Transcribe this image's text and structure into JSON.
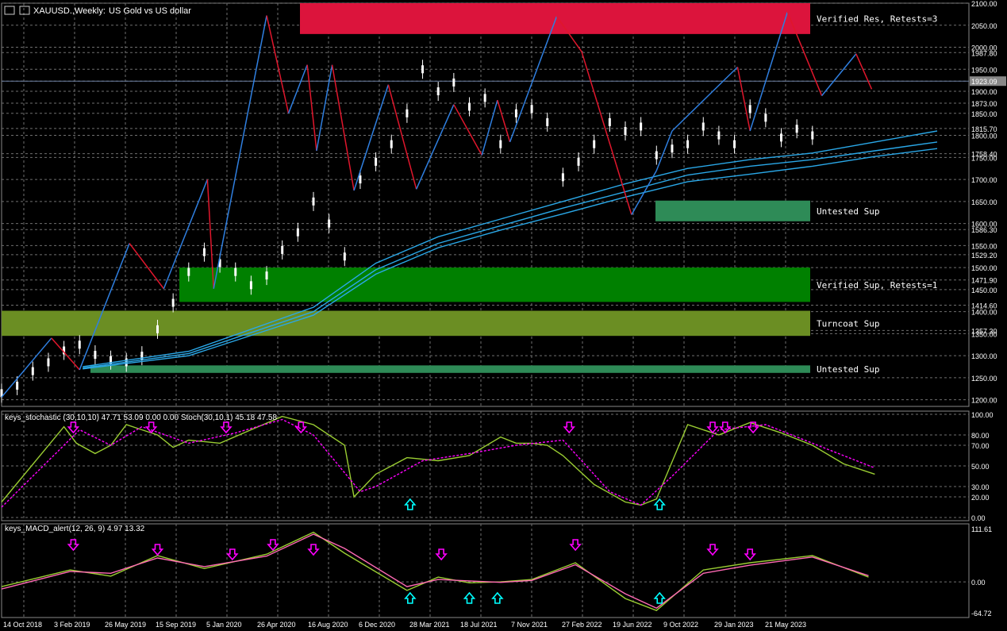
{
  "header": {
    "symbol": "XAUUSD.,Weekly:",
    "description": "US Gold vs US dollar"
  },
  "colors": {
    "background": "#000000",
    "grid": "#6f6f6f",
    "price_axis_bg": "#000000",
    "up_candle": "#ffffff",
    "zigzag_up": "#2f7fe0",
    "zigzag_down": "#e0162c",
    "moving_average": "#2aa8e8",
    "zone_resistance": "#dc143c",
    "zone_verified_sup": "#008000",
    "zone_turncoat": "#6b8e23",
    "zone_untested": "#2e8b57",
    "stoch_main": "#9acd32",
    "stoch_signal": "#ff00ff",
    "stoch_raw": "#9a9a9a",
    "macd_main": "#9acd32",
    "macd_signal": "#ff69b4",
    "arrow_down": "#ff00ff",
    "arrow_up": "#00ffff"
  },
  "price_panel": {
    "y_ticks": [
      "2100.00",
      "2050.00",
      "2000.00",
      "1987.80",
      "1950.00",
      "1923.09",
      "1900.00",
      "1873.00",
      "1850.00",
      "1815.70",
      "1800.00",
      "1758.40",
      "1750.00",
      "1700.00",
      "1650.00",
      "1600.00",
      "1586.30",
      "1550.00",
      "1529.20",
      "1500.00",
      "1471.90",
      "1450.00",
      "1414.60",
      "1400.00",
      "1357.30",
      "1350.00",
      "1300.00",
      "1250.00",
      "1200.00"
    ],
    "current_price": "1923.09",
    "ylim": [
      1185,
      2100
    ],
    "zones": [
      {
        "kind": "resistance",
        "low": 2030,
        "high": 2100,
        "label": "Verified Res, Retests=3"
      },
      {
        "kind": "untested",
        "low": 1605,
        "high": 1652,
        "label": "Untested Sup"
      },
      {
        "kind": "verified",
        "low": 1422,
        "high": 1500,
        "label": "Verified Sup, Retests=1"
      },
      {
        "kind": "turncoat",
        "low": 1345,
        "high": 1402,
        "label": "Turncoat Sup"
      },
      {
        "kind": "untested",
        "low": 1261,
        "high": 1278,
        "label": "Untested Sup"
      }
    ]
  },
  "stoch_panel": {
    "title": "keys_stochastic (30,10,10) 47.71 53.09 0.00 0.00 Stoch(30,10,1) 45.18 47.58",
    "y_ticks": [
      "100.00",
      "80.00",
      "70.00",
      "50.00",
      "30.00",
      "20.00",
      "0.00"
    ],
    "ylim": [
      0,
      100
    ]
  },
  "macd_panel": {
    "title": "keys_MACD_alert(12, 26, 9) 4.97 13.32",
    "y_ticks": [
      "111.61",
      "0.00",
      "-64.72"
    ],
    "ylim": [
      -64.72,
      111.61
    ]
  },
  "x_axis": {
    "labels": [
      "14 Oct 2018",
      "3 Feb 2019",
      "26 May 2019",
      "15 Sep 2019",
      "5 Jan 2020",
      "26 Apr 2020",
      "16 Aug 2020",
      "6 Dec 2020",
      "28 Mar 2021",
      "18 Jul 2021",
      "7 Nov 2021",
      "27 Feb 2022",
      "19 Jun 2022",
      "9 Oct 2022",
      "29 Jan 2023",
      "21 May 2023"
    ]
  },
  "chart_data": [
    {
      "type": "line",
      "panel": "price",
      "ylim": [
        1185,
        2100
      ],
      "series": [
        {
          "role": "close",
          "x": [
            0,
            5,
            10,
            15,
            20,
            25,
            30,
            35,
            40,
            45,
            50,
            55,
            60,
            65,
            70,
            75,
            80,
            85,
            90,
            95,
            100,
            105,
            110,
            115,
            120,
            125,
            130,
            135,
            140,
            145,
            150,
            155,
            160,
            165,
            170,
            175,
            180,
            185,
            190,
            195,
            200,
            205,
            210,
            215,
            220,
            225,
            230,
            235,
            240,
            245,
            250,
            255,
            260
          ],
          "values": [
            1215,
            1232,
            1265,
            1285,
            1312,
            1325,
            1302,
            1290,
            1285,
            1300,
            1360,
            1420,
            1490,
            1535,
            1510,
            1490,
            1460,
            1482,
            1540,
            1580,
            1650,
            1600,
            1525,
            1700,
            1740,
            1780,
            1850,
            1950,
            1900,
            1920,
            1865,
            1885,
            1780,
            1850,
            1860,
            1830,
            1705,
            1740,
            1780,
            1830,
            1810,
            1820,
            1755,
            1770,
            1780,
            1820,
            1800,
            1780,
            1860,
            1840,
            1795,
            1815,
            1800
          ]
        },
        {
          "role": "ma1",
          "x": [
            26,
            60,
            100,
            120,
            140,
            160,
            180,
            200,
            220,
            240,
            260,
            280,
            300
          ],
          "values": [
            1275,
            1310,
            1410,
            1510,
            1570,
            1610,
            1650,
            1690,
            1725,
            1745,
            1760,
            1785,
            1810
          ]
        },
        {
          "role": "ma2",
          "x": [
            26,
            60,
            100,
            120,
            140,
            160,
            180,
            200,
            220,
            240,
            260,
            280,
            300
          ],
          "values": [
            1272,
            1305,
            1400,
            1495,
            1555,
            1595,
            1635,
            1672,
            1710,
            1730,
            1745,
            1765,
            1785
          ]
        },
        {
          "role": "ma3",
          "x": [
            26,
            60,
            100,
            120,
            140,
            160,
            180,
            200,
            220,
            240,
            260,
            280,
            300
          ],
          "values": [
            1270,
            1300,
            1392,
            1485,
            1545,
            1585,
            1622,
            1660,
            1695,
            1712,
            1730,
            1752,
            1770
          ]
        }
      ],
      "zigzag": [
        [
          0,
          1206
        ],
        [
          16,
          1340
        ],
        [
          25,
          1268
        ],
        [
          41,
          1555
        ],
        [
          52,
          1452
        ],
        [
          66,
          1700
        ],
        [
          68,
          1452
        ],
        [
          85,
          2072
        ],
        [
          92,
          1850
        ],
        [
          98,
          1960
        ],
        [
          101,
          1765
        ],
        [
          106,
          1960
        ],
        [
          113,
          1675
        ],
        [
          124,
          1915
        ],
        [
          133,
          1678
        ],
        [
          145,
          1870
        ],
        [
          154,
          1755
        ],
        [
          159,
          1880
        ],
        [
          163,
          1785
        ],
        [
          178,
          2070
        ],
        [
          186,
          1990
        ],
        [
          202,
          1620
        ],
        [
          210,
          1720
        ],
        [
          215,
          1810
        ],
        [
          236,
          1955
        ],
        [
          240,
          1810
        ],
        [
          252,
          2080
        ],
        [
          263,
          1890
        ],
        [
          274,
          1985
        ],
        [
          279,
          1905
        ]
      ]
    },
    {
      "type": "line",
      "panel": "stochastic",
      "ylim": [
        0,
        100
      ],
      "series": [
        {
          "role": "main",
          "x": [
            0,
            20,
            24,
            30,
            35,
            40,
            45,
            50,
            55,
            60,
            70,
            80,
            90,
            100,
            110,
            113,
            120,
            130,
            140,
            150,
            160,
            165,
            170,
            175,
            180,
            190,
            200,
            205,
            210,
            220,
            230,
            235,
            240,
            250,
            260,
            270,
            280
          ],
          "values": [
            15,
            88,
            72,
            62,
            70,
            90,
            85,
            80,
            68,
            75,
            72,
            85,
            98,
            90,
            70,
            20,
            42,
            58,
            55,
            60,
            78,
            72,
            72,
            70,
            60,
            32,
            15,
            12,
            18,
            90,
            80,
            86,
            92,
            82,
            70,
            52,
            42
          ]
        },
        {
          "role": "signal",
          "x": [
            0,
            25,
            35,
            45,
            60,
            75,
            90,
            100,
            115,
            120,
            135,
            150,
            165,
            180,
            195,
            205,
            215,
            230,
            245,
            260,
            280
          ],
          "values": [
            10,
            85,
            70,
            88,
            72,
            82,
            95,
            80,
            25,
            30,
            55,
            62,
            70,
            75,
            25,
            12,
            40,
            85,
            90,
            72,
            48
          ]
        }
      ],
      "arrows_down": [
        23,
        48,
        72,
        96,
        182,
        228,
        232,
        241
      ],
      "arrows_up": [
        131,
        211
      ]
    },
    {
      "type": "line",
      "panel": "macd",
      "ylim": [
        -64.72,
        111.61
      ],
      "series": [
        {
          "role": "main",
          "x": [
            0,
            22,
            35,
            50,
            65,
            85,
            100,
            110,
            130,
            140,
            150,
            160,
            170,
            184,
            200,
            210,
            225,
            240,
            260,
            278
          ],
          "values": [
            -10,
            25,
            12,
            55,
            28,
            58,
            104,
            60,
            -18,
            10,
            -2,
            0,
            5,
            40,
            -35,
            -60,
            25,
            40,
            55,
            10
          ]
        },
        {
          "role": "signal",
          "x": [
            0,
            22,
            35,
            50,
            65,
            85,
            100,
            110,
            130,
            140,
            150,
            160,
            170,
            184,
            200,
            210,
            225,
            240,
            260,
            278
          ],
          "values": [
            -15,
            22,
            18,
            50,
            32,
            54,
            100,
            70,
            -10,
            5,
            2,
            -1,
            3,
            36,
            -25,
            -55,
            18,
            35,
            52,
            13
          ]
        }
      ],
      "arrows_down": [
        23,
        50,
        74,
        87,
        100,
        141,
        184,
        228,
        240
      ],
      "arrows_up": [
        131,
        150,
        159,
        211
      ]
    }
  ]
}
